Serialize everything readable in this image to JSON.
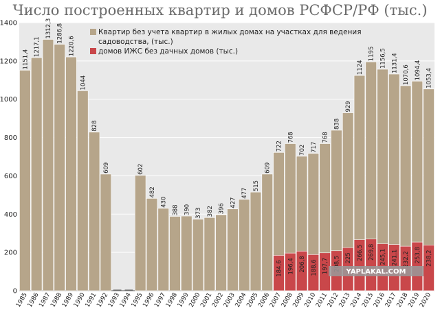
{
  "chart_data": {
    "type": "bar",
    "title": "Число построенных квартир и домов РСФСР/РФ (тыс.)",
    "ylim": [
      0,
      1400
    ],
    "yticks": [
      0,
      200,
      400,
      600,
      800,
      1000,
      1200,
      1400
    ],
    "grid": true,
    "legend_position": "top-center",
    "categories": [
      "1985",
      "1986",
      "1987",
      "1988",
      "1989",
      "1990",
      "1991",
      "1992",
      "1993",
      "1994",
      "1995",
      "1996",
      "1997",
      "1998",
      "1999",
      "2000",
      "2001",
      "2002",
      "2003",
      "2004",
      "2005",
      "2006",
      "2007",
      "2008",
      "2009",
      "2010",
      "2011",
      "2012",
      "2013",
      "2014",
      "2015",
      "2016",
      "2017",
      "2018",
      "2019",
      "2020"
    ],
    "series": [
      {
        "name": "Квартир без учета квартир в жилых домах на участках для ведения садоводства, (тыс.)",
        "color": "#b6a58a",
        "values": [
          1151.4,
          1217.1,
          1312.3,
          1286.8,
          1220.6,
          1044,
          828,
          609,
          null,
          null,
          602,
          482,
          430,
          388,
          390,
          373,
          382,
          396,
          427,
          477,
          515,
          609,
          722,
          768,
          702,
          717,
          768,
          838,
          929,
          1124,
          1195,
          1156.5,
          1131.4,
          1070.6,
          1094.4,
          1053.4
        ],
        "labels": [
          "1151,4",
          "1217,1",
          "1312,3",
          "1286,8",
          "1220,6",
          "1044",
          "828",
          "609",
          "",
          "",
          "602",
          "482",
          "430",
          "388",
          "390",
          "373",
          "382",
          "396",
          "427",
          "477",
          "515",
          "609",
          "722",
          "768",
          "702",
          "717",
          "768",
          "838",
          "929",
          "1124",
          "1195",
          "1156,5",
          "1131,4",
          "1070,6",
          "1094,4",
          "1053,4"
        ]
      },
      {
        "name": "домов ИЖС без дачных домов (тыс.)",
        "color": "#c9474a",
        "values": [
          null,
          null,
          null,
          null,
          null,
          null,
          null,
          null,
          null,
          null,
          null,
          null,
          null,
          null,
          null,
          null,
          null,
          null,
          null,
          null,
          null,
          null,
          184.6,
          196.4,
          206.8,
          188.6,
          197.7,
          208.5,
          225,
          266.5,
          269.8,
          245.1,
          241.1,
          232.2,
          253.8,
          238.2
        ],
        "labels": [
          "",
          "",
          "",
          "",
          "",
          "",
          "",
          "",
          "",
          "",
          "",
          "",
          "",
          "",
          "",
          "",
          "",
          "",
          "",
          "",
          "",
          "",
          "184,6",
          "196,4",
          "206,8",
          "188,6",
          "197,7",
          "208,5",
          "225",
          "266,5",
          "269,8",
          "245,1",
          "241,1",
          "232,2",
          "253,8",
          "238,2"
        ]
      }
    ],
    "colors": {
      "plot_background": "#e9e9e9",
      "grid": "#ffffff",
      "bar_outline": "#ffffff",
      "title": "#6b6b6b"
    }
  },
  "watermark": "YAPLAKAL.COM"
}
